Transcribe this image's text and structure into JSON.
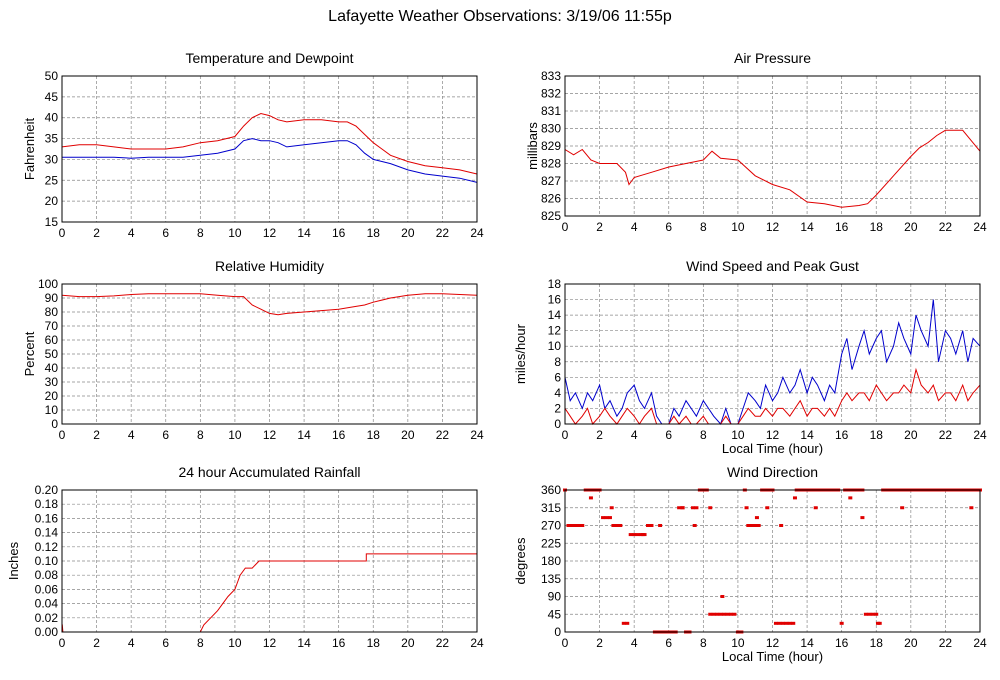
{
  "page": {
    "title": "Lafayette Weather Observations: 3/19/06 11:55p"
  },
  "colors": {
    "red": "#e00000",
    "blue": "#0000cc",
    "frame": "#000000",
    "grid": "#888888"
  },
  "chart_data": [
    {
      "id": "temp",
      "type": "line",
      "title": "Temperature and Dewpoint",
      "xlabel": "",
      "ylabel": "Fahrenheit",
      "xlim": [
        0,
        24
      ],
      "ylim": [
        15,
        50
      ],
      "xticks": [
        0,
        2,
        4,
        6,
        8,
        10,
        12,
        14,
        16,
        18,
        20,
        22,
        24
      ],
      "yticks": [
        15,
        20,
        25,
        30,
        35,
        40,
        45,
        50
      ],
      "grid": true,
      "series": [
        {
          "color": "#e00000",
          "x": [
            0,
            1,
            2,
            3,
            4,
            5,
            6,
            7,
            8,
            9,
            10,
            10.5,
            11,
            11.5,
            12,
            12.5,
            13,
            14,
            15,
            16,
            16.5,
            17,
            17.5,
            18,
            18.5,
            19,
            20,
            21,
            22,
            23,
            24
          ],
          "y": [
            33,
            33.5,
            33.5,
            33,
            32.5,
            32.5,
            32.5,
            33,
            34,
            34.5,
            35.5,
            38,
            40,
            41,
            40.5,
            39.5,
            39,
            39.5,
            39.5,
            39,
            39,
            38,
            36,
            34,
            32.5,
            31,
            29.5,
            28.5,
            28,
            27.5,
            26.5
          ]
        },
        {
          "color": "#0000cc",
          "x": [
            0,
            1,
            2,
            3,
            4,
            5,
            6,
            7,
            8,
            9,
            10,
            10.5,
            11,
            11.5,
            12,
            12.5,
            13,
            14,
            15,
            16,
            16.5,
            17,
            17.5,
            18,
            18.5,
            19,
            20,
            21,
            22,
            23,
            24
          ],
          "y": [
            30.5,
            30.5,
            30.5,
            30.5,
            30.3,
            30.5,
            30.5,
            30.5,
            31,
            31.5,
            32.5,
            34.5,
            35,
            34.5,
            34.5,
            34,
            33,
            33.5,
            34,
            34.5,
            34.5,
            33.5,
            31.5,
            30,
            29.5,
            29,
            27.5,
            26.5,
            26,
            25.5,
            24.5
          ]
        }
      ]
    },
    {
      "id": "pressure",
      "type": "line",
      "title": "Air Pressure",
      "xlabel": "",
      "ylabel": "millibars",
      "xlim": [
        0,
        24
      ],
      "ylim": [
        825,
        833
      ],
      "xticks": [
        0,
        2,
        4,
        6,
        8,
        10,
        12,
        14,
        16,
        18,
        20,
        22,
        24
      ],
      "yticks": [
        825,
        826,
        827,
        828,
        829,
        830,
        831,
        832,
        833
      ],
      "grid": true,
      "series": [
        {
          "color": "#e00000",
          "x": [
            0,
            0.5,
            1,
            1.5,
            2,
            3,
            3.5,
            3.7,
            4,
            5,
            6,
            7,
            8,
            8.5,
            9,
            10,
            11,
            12,
            13,
            14,
            15,
            16,
            17,
            17.5,
            18,
            19,
            20,
            20.5,
            21,
            21.5,
            22,
            23,
            23.5,
            24
          ],
          "y": [
            828.8,
            828.5,
            828.8,
            828.2,
            828,
            828,
            827.5,
            826.8,
            827.2,
            827.5,
            827.8,
            828,
            828.2,
            828.7,
            828.3,
            828.2,
            827.3,
            826.8,
            826.5,
            825.8,
            825.7,
            825.5,
            825.6,
            825.7,
            826.2,
            827.3,
            828.4,
            828.9,
            829.2,
            829.6,
            829.9,
            829.9,
            829.3,
            828.7
          ]
        }
      ]
    },
    {
      "id": "humidity",
      "type": "line",
      "title": "Relative Humidity",
      "xlabel": "",
      "ylabel": "Percent",
      "xlim": [
        0,
        24
      ],
      "ylim": [
        0,
        100
      ],
      "xticks": [
        0,
        2,
        4,
        6,
        8,
        10,
        12,
        14,
        16,
        18,
        20,
        22,
        24
      ],
      "yticks": [
        0,
        10,
        20,
        30,
        40,
        50,
        60,
        70,
        80,
        90,
        100
      ],
      "grid": true,
      "series": [
        {
          "color": "#e00000",
          "x": [
            0,
            1,
            2,
            3,
            4,
            5,
            6,
            7,
            8,
            9,
            10,
            10.5,
            11,
            11.5,
            12,
            12.5,
            13,
            14,
            15,
            16,
            17,
            17.5,
            18,
            19,
            20,
            21,
            22,
            23,
            24
          ],
          "y": [
            92,
            91,
            91,
            91.5,
            92.5,
            93,
            93,
            93,
            93,
            92,
            91,
            91,
            85,
            82,
            79,
            78,
            79,
            80,
            81,
            82,
            84,
            85,
            87,
            90,
            92,
            93,
            93,
            92.5,
            92
          ]
        }
      ]
    },
    {
      "id": "wind",
      "type": "line",
      "title": "Wind Speed and Peak Gust",
      "xlabel": "Local Time (hour)",
      "ylabel": "miles/hour",
      "xlim": [
        0,
        24
      ],
      "ylim": [
        0,
        18
      ],
      "xticks": [
        0,
        2,
        4,
        6,
        8,
        10,
        12,
        14,
        16,
        18,
        20,
        22,
        24
      ],
      "yticks": [
        0,
        2,
        4,
        6,
        8,
        10,
        12,
        14,
        16,
        18
      ],
      "grid": true,
      "series": [
        {
          "color": "#0000cc",
          "x": [
            0,
            0.3,
            0.6,
            1,
            1.3,
            1.6,
            2,
            2.3,
            2.6,
            3,
            3.3,
            3.6,
            4,
            4.3,
            4.6,
            5,
            5.3,
            5.6,
            6,
            6.3,
            6.6,
            7,
            7.3,
            7.6,
            8,
            8.3,
            8.6,
            9,
            9.3,
            9.6,
            10,
            10.3,
            10.6,
            11,
            11.3,
            11.6,
            12,
            12.3,
            12.6,
            13,
            13.3,
            13.6,
            14,
            14.3,
            14.6,
            15,
            15.3,
            15.6,
            16,
            16.3,
            16.6,
            17,
            17.3,
            17.6,
            18,
            18.3,
            18.6,
            19,
            19.3,
            19.6,
            20,
            20.3,
            20.6,
            21,
            21.3,
            21.6,
            22,
            22.3,
            22.6,
            23,
            23.3,
            23.6,
            24
          ],
          "y": [
            6,
            3,
            4,
            2,
            4,
            3,
            5,
            2,
            3,
            1,
            2,
            4,
            5,
            3,
            2,
            4,
            1,
            0,
            0,
            2,
            1,
            3,
            2,
            1,
            3,
            2,
            1,
            0,
            2,
            0,
            0,
            2,
            4,
            3,
            2,
            5,
            3,
            4,
            6,
            4,
            5,
            7,
            4,
            6,
            5,
            3,
            5,
            4,
            9,
            11,
            7,
            10,
            12,
            9,
            11,
            12,
            8,
            10,
            13,
            11,
            9,
            14,
            12,
            10,
            16,
            8,
            12,
            11,
            9,
            12,
            8,
            11,
            10
          ]
        },
        {
          "color": "#e00000",
          "x": [
            0,
            0.3,
            0.6,
            1,
            1.3,
            1.6,
            2,
            2.3,
            2.6,
            3,
            3.3,
            3.6,
            4,
            4.3,
            4.6,
            5,
            5.3,
            5.6,
            6,
            6.3,
            6.6,
            7,
            7.3,
            7.6,
            8,
            8.3,
            8.6,
            9,
            9.3,
            9.6,
            10,
            10.3,
            10.6,
            11,
            11.3,
            11.6,
            12,
            12.3,
            12.6,
            13,
            13.3,
            13.6,
            14,
            14.3,
            14.6,
            15,
            15.3,
            15.6,
            16,
            16.3,
            16.6,
            17,
            17.3,
            17.6,
            18,
            18.3,
            18.6,
            19,
            19.3,
            19.6,
            20,
            20.3,
            20.6,
            21,
            21.3,
            21.6,
            22,
            22.3,
            22.6,
            23,
            23.3,
            23.6,
            24
          ],
          "y": [
            2,
            1,
            0,
            1,
            2,
            0,
            1,
            2,
            1,
            0,
            1,
            2,
            1,
            0,
            1,
            2,
            0,
            0,
            0,
            1,
            0,
            1,
            0,
            0,
            1,
            0,
            0,
            0,
            1,
            0,
            0,
            1,
            2,
            1,
            1,
            2,
            1,
            2,
            2,
            1,
            2,
            3,
            1,
            2,
            2,
            1,
            2,
            1,
            3,
            4,
            3,
            4,
            4,
            3,
            5,
            4,
            3,
            4,
            4,
            5,
            4,
            7,
            5,
            4,
            5,
            3,
            4,
            4,
            3,
            5,
            3,
            4,
            5
          ]
        }
      ]
    },
    {
      "id": "rain",
      "type": "line",
      "title": "24 hour Accumulated Rainfall",
      "xlabel": "",
      "ylabel": "Inches",
      "xlim": [
        0,
        24
      ],
      "ylim": [
        0,
        0.2
      ],
      "xticks": [
        0,
        2,
        4,
        6,
        8,
        10,
        12,
        14,
        16,
        18,
        20,
        22,
        24
      ],
      "yticks": [
        0,
        0.02,
        0.04,
        0.06,
        0.08,
        0.1,
        0.12,
        0.14,
        0.16,
        0.18,
        0.2
      ],
      "ytick_labels": [
        "0.00",
        "0.02",
        "0.04",
        "0.06",
        "0.08",
        "0.10",
        "0.12",
        "0.14",
        "0.16",
        "0.18",
        "0.20"
      ],
      "grid": true,
      "series": [
        {
          "color": "#e00000",
          "x": [
            0,
            0.02,
            0.05,
            8,
            8.2,
            8.6,
            9,
            9.3,
            9.6,
            10,
            10.3,
            10.6,
            11,
            11.4,
            17.6,
            17.6,
            24
          ],
          "y": [
            0.01,
            0.01,
            0,
            0,
            0.01,
            0.02,
            0.03,
            0.04,
            0.05,
            0.06,
            0.08,
            0.09,
            0.09,
            0.1,
            0.1,
            0.11,
            0.11
          ]
        }
      ]
    },
    {
      "id": "direction",
      "type": "scatter",
      "title": "Wind Direction",
      "xlabel": "Local Time (hour)",
      "ylabel": "degrees",
      "xlim": [
        0,
        24
      ],
      "ylim": [
        0,
        360
      ],
      "xticks": [
        0,
        2,
        4,
        6,
        8,
        10,
        12,
        14,
        16,
        18,
        20,
        22,
        24
      ],
      "yticks": [
        0,
        45,
        90,
        135,
        180,
        225,
        270,
        315,
        360
      ],
      "grid": true,
      "series": [
        {
          "color": "#e00000",
          "x": [
            0,
            0.2,
            0.4,
            0.6,
            0.8,
            1,
            1.2,
            1.4,
            1.6,
            1.8,
            2,
            2.2,
            2.4,
            2.6,
            2.8,
            3,
            3.2,
            3.4,
            3.6,
            3.8,
            4,
            4.2,
            4.4,
            4.6,
            4.8,
            5,
            5.2,
            5.4,
            5.6,
            5.8,
            6,
            6.2,
            6.4,
            6.6,
            6.8,
            7,
            7.2,
            7.4,
            7.6,
            7.8,
            8,
            8.2,
            8.4,
            8.6,
            8.8,
            9,
            9.2,
            9.4,
            9.6,
            9.8,
            10,
            10.2,
            10.4,
            10.6,
            10.8,
            11,
            11.2,
            11.4,
            11.6,
            11.8,
            12,
            12.2,
            12.4,
            12.6,
            12.8,
            13,
            13.2,
            13.4,
            13.6,
            13.8,
            14,
            14.2,
            14.4,
            14.6,
            14.8,
            15,
            15.2,
            15.4,
            15.6,
            15.8,
            16,
            16.2,
            16.4,
            16.6,
            16.8,
            17,
            17.2,
            17.4,
            17.6,
            17.8,
            18,
            18.2,
            18.4,
            18.6,
            18.8,
            19,
            19.2,
            19.4,
            19.6,
            19.8,
            20,
            20.2,
            20.4,
            20.6,
            20.8,
            21,
            21.2,
            21.4,
            21.6,
            21.8,
            22,
            22.2,
            22.4,
            22.6,
            22.8,
            23,
            23.2,
            23.4,
            23.6,
            23.8,
            24,
            0.5,
            1.5,
            2.7,
            3.1,
            4.5,
            5.5,
            6.8,
            7.5,
            8.4,
            9.1,
            10.5,
            11.1,
            11.7,
            12.5,
            13.3,
            14.5,
            16.5,
            17.2,
            18.1,
            19.5,
            21.3,
            23.5
          ],
          "y": [
            360,
            270,
            270,
            270,
            270,
            270,
            360,
            360,
            360,
            360,
            360,
            290,
            290,
            290,
            270,
            270,
            270,
            22,
            22,
            247,
            247,
            247,
            247,
            247,
            270,
            270,
            0,
            0,
            0,
            0,
            0,
            0,
            0,
            315,
            315,
            0,
            0,
            315,
            315,
            360,
            360,
            360,
            45,
            45,
            45,
            45,
            45,
            45,
            45,
            45,
            0,
            0,
            360,
            270,
            270,
            270,
            270,
            360,
            360,
            360,
            360,
            22,
            22,
            22,
            22,
            22,
            22,
            360,
            360,
            360,
            360,
            360,
            360,
            360,
            360,
            360,
            360,
            360,
            360,
            360,
            22,
            360,
            360,
            360,
            360,
            360,
            360,
            45,
            45,
            45,
            45,
            22,
            360,
            360,
            360,
            360,
            360,
            360,
            360,
            360,
            360,
            360,
            360,
            360,
            360,
            360,
            360,
            360,
            360,
            360,
            360,
            360,
            360,
            360,
            360,
            360,
            360,
            360,
            360,
            360,
            360,
            270,
            340,
            315,
            270,
            247,
            270,
            315,
            270,
            315,
            90,
            315,
            290,
            315,
            270,
            340,
            315,
            340,
            290,
            22,
            315,
            360,
            315
          ]
        }
      ]
    }
  ]
}
